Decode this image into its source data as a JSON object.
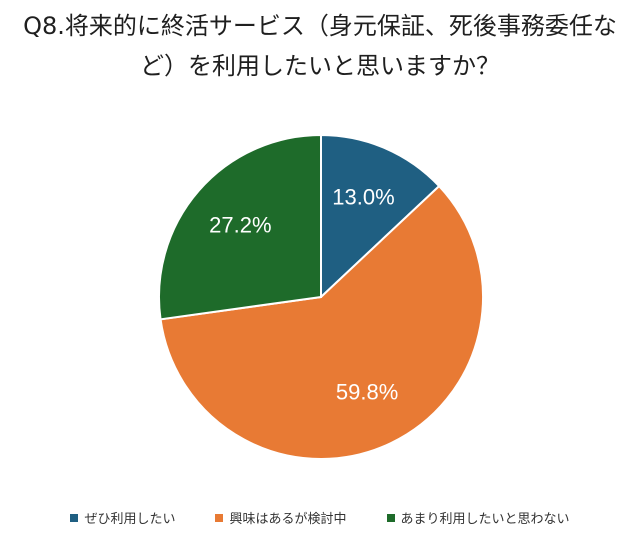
{
  "chart_data": {
    "type": "pie",
    "title_lines": [
      "Q8.将来的に終活サービス（身元保証、死後事務委任な",
      "ど）を利用したいと思いますか？"
    ],
    "slices": [
      {
        "label": "ぜひ利用したい",
        "value": 13.0,
        "display": "13.0%",
        "color": "#1f5f82"
      },
      {
        "label": "興味はあるが検討中",
        "value": 59.8,
        "display": "59.8%",
        "color": "#e87a34"
      },
      {
        "label": "あまり利用したいと思わない",
        "value": 27.2,
        "display": "27.2%",
        "color": "#1e6b2a"
      }
    ],
    "start_angle": "12 o'clock",
    "direction": "clockwise",
    "legend_position": "bottom",
    "label_color": "#ffffff"
  }
}
